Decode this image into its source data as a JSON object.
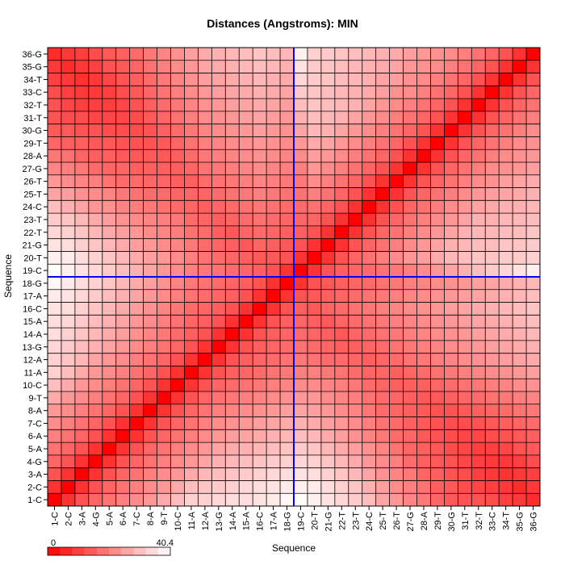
{
  "chart_data": {
    "type": "heatmap",
    "title": "Distances (Angstroms):  MIN",
    "xlabel": "Sequence",
    "ylabel": "Sequence",
    "labels": [
      "1-C",
      "2-C",
      "3-A",
      "4-G",
      "5-A",
      "6-A",
      "7-C",
      "8-A",
      "9-T",
      "10-C",
      "11-A",
      "12-A",
      "13-G",
      "14-A",
      "15-A",
      "16-C",
      "17-A",
      "18-G",
      "19-C",
      "20-T",
      "21-G",
      "22-T",
      "23-T",
      "24-C",
      "25-T",
      "26-T",
      "27-G",
      "28-A",
      "29-T",
      "30-G",
      "31-T",
      "32-T",
      "33-C",
      "34-T",
      "35-G",
      "36-G"
    ],
    "colorbar": {
      "min": 0,
      "max": 40.4,
      "min_label": "0",
      "max_label": "40.4",
      "low_color": "#ff0000",
      "high_color": "#ffffff"
    },
    "crosshair": {
      "x_index": 18,
      "y_index": 18,
      "color": "#0000ff"
    },
    "values": [
      [
        0,
        8,
        13,
        16,
        18,
        20,
        22,
        24,
        27,
        30,
        33,
        33,
        34,
        35,
        35,
        36,
        37,
        39,
        40,
        38,
        36,
        34,
        32,
        30,
        26,
        24,
        21,
        19,
        16,
        14,
        13,
        13,
        12,
        10,
        9,
        7
      ],
      [
        8,
        0,
        8,
        13,
        16,
        18,
        20,
        22,
        24,
        27,
        30,
        31,
        32,
        33,
        34,
        35,
        36,
        37,
        38,
        37,
        35,
        33,
        31,
        28,
        25,
        22,
        20,
        18,
        15,
        14,
        12,
        11,
        10,
        9,
        7,
        9
      ],
      [
        13,
        8,
        0,
        8,
        13,
        16,
        18,
        20,
        22,
        24,
        27,
        29,
        30,
        31,
        32,
        33,
        34,
        35,
        36,
        35,
        33,
        31,
        29,
        26,
        23,
        21,
        19,
        16,
        15,
        13,
        12,
        10,
        9,
        8,
        9,
        10
      ],
      [
        16,
        13,
        8,
        0,
        8,
        13,
        16,
        18,
        20,
        22,
        24,
        26,
        28,
        29,
        30,
        31,
        32,
        33,
        34,
        33,
        31,
        29,
        27,
        24,
        22,
        20,
        17,
        15,
        14,
        13,
        11,
        10,
        9,
        9,
        10,
        12
      ],
      [
        18,
        16,
        13,
        8,
        0,
        8,
        13,
        16,
        18,
        20,
        22,
        24,
        26,
        27,
        28,
        29,
        30,
        31,
        32,
        31,
        29,
        27,
        25,
        23,
        21,
        18,
        16,
        15,
        14,
        12,
        11,
        10,
        10,
        11,
        13,
        14
      ],
      [
        20,
        18,
        16,
        13,
        8,
        0,
        8,
        13,
        16,
        18,
        20,
        22,
        24,
        25,
        26,
        27,
        28,
        29,
        30,
        29,
        27,
        25,
        23,
        21,
        19,
        17,
        16,
        14,
        13,
        12,
        11,
        11,
        12,
        13,
        14,
        15
      ],
      [
        22,
        20,
        18,
        16,
        13,
        8,
        0,
        8,
        13,
        16,
        18,
        20,
        22,
        23,
        24,
        25,
        26,
        27,
        28,
        27,
        25,
        24,
        22,
        20,
        18,
        17,
        15,
        14,
        13,
        12,
        12,
        13,
        14,
        15,
        16,
        17
      ],
      [
        24,
        22,
        20,
        18,
        16,
        13,
        8,
        0,
        8,
        13,
        16,
        18,
        20,
        21,
        22,
        23,
        24,
        25,
        26,
        25,
        24,
        22,
        21,
        19,
        17,
        16,
        15,
        14,
        13,
        13,
        14,
        15,
        16,
        17,
        18,
        19
      ],
      [
        27,
        24,
        22,
        20,
        18,
        16,
        13,
        8,
        0,
        8,
        13,
        16,
        18,
        19,
        20,
        21,
        22,
        23,
        24,
        24,
        22,
        21,
        20,
        18,
        17,
        16,
        15,
        14,
        14,
        15,
        16,
        17,
        18,
        19,
        20,
        21
      ],
      [
        30,
        27,
        24,
        22,
        20,
        18,
        16,
        13,
        8,
        0,
        8,
        13,
        16,
        17,
        18,
        19,
        20,
        21,
        22,
        22,
        21,
        20,
        19,
        17,
        16,
        15,
        15,
        15,
        16,
        17,
        18,
        19,
        20,
        21,
        22,
        23
      ],
      [
        33,
        30,
        27,
        24,
        22,
        20,
        18,
        16,
        13,
        8,
        0,
        8,
        13,
        15,
        16,
        17,
        18,
        19,
        20,
        20,
        19,
        18,
        17,
        16,
        16,
        15,
        16,
        17,
        18,
        19,
        20,
        21,
        22,
        23,
        24,
        25
      ],
      [
        33,
        31,
        29,
        26,
        24,
        22,
        20,
        18,
        16,
        13,
        8,
        0,
        8,
        13,
        15,
        16,
        17,
        18,
        19,
        18,
        17,
        17,
        16,
        15,
        16,
        17,
        18,
        19,
        20,
        21,
        22,
        23,
        24,
        25,
        26,
        27
      ],
      [
        34,
        32,
        30,
        28,
        26,
        24,
        22,
        20,
        18,
        16,
        13,
        8,
        0,
        8,
        13,
        15,
        16,
        17,
        18,
        17,
        16,
        15,
        15,
        16,
        17,
        18,
        19,
        20,
        21,
        22,
        23,
        24,
        25,
        26,
        27,
        28
      ],
      [
        35,
        33,
        31,
        29,
        27,
        25,
        23,
        21,
        19,
        17,
        15,
        13,
        8,
        0,
        8,
        13,
        15,
        16,
        17,
        16,
        15,
        14,
        16,
        17,
        18,
        19,
        20,
        21,
        22,
        23,
        24,
        25,
        26,
        27,
        28,
        29
      ],
      [
        35,
        34,
        32,
        30,
        28,
        26,
        24,
        22,
        20,
        18,
        16,
        15,
        13,
        8,
        0,
        8,
        13,
        15,
        16,
        15,
        14,
        16,
        17,
        18,
        19,
        20,
        21,
        22,
        23,
        24,
        25,
        26,
        27,
        28,
        29,
        30
      ],
      [
        36,
        35,
        33,
        31,
        29,
        27,
        25,
        23,
        21,
        19,
        17,
        16,
        15,
        13,
        8,
        0,
        8,
        13,
        15,
        14,
        16,
        17,
        18,
        19,
        20,
        21,
        22,
        23,
        24,
        25,
        26,
        27,
        28,
        29,
        30,
        31
      ],
      [
        37,
        36,
        34,
        32,
        30,
        28,
        26,
        24,
        22,
        20,
        18,
        17,
        16,
        15,
        13,
        8,
        0,
        8,
        13,
        14,
        15,
        16,
        17,
        18,
        19,
        20,
        21,
        22,
        23,
        24,
        25,
        26,
        27,
        28,
        29,
        30
      ],
      [
        39,
        37,
        35,
        33,
        31,
        29,
        27,
        25,
        23,
        21,
        19,
        18,
        17,
        16,
        15,
        13,
        8,
        0,
        8,
        13,
        14,
        15,
        16,
        17,
        18,
        19,
        20,
        21,
        22,
        23,
        24,
        25,
        26,
        27,
        28,
        29
      ],
      [
        40,
        38,
        36,
        34,
        32,
        30,
        28,
        26,
        24,
        22,
        20,
        19,
        18,
        17,
        16,
        15,
        13,
        8,
        0,
        8,
        13,
        15,
        16,
        17,
        18,
        19,
        20,
        22,
        24,
        26,
        28,
        30,
        32,
        34,
        36,
        38
      ],
      [
        38,
        37,
        35,
        33,
        31,
        29,
        27,
        25,
        24,
        22,
        20,
        18,
        17,
        16,
        15,
        14,
        14,
        13,
        8,
        0,
        8,
        13,
        16,
        18,
        20,
        22,
        24,
        25,
        27,
        29,
        30,
        31,
        31,
        32,
        32,
        33
      ],
      [
        36,
        35,
        33,
        31,
        29,
        27,
        25,
        24,
        22,
        21,
        19,
        17,
        16,
        15,
        14,
        16,
        15,
        14,
        13,
        8,
        0,
        8,
        13,
        16,
        18,
        20,
        22,
        24,
        26,
        28,
        29,
        30,
        30,
        31,
        31,
        32
      ],
      [
        34,
        33,
        31,
        29,
        27,
        25,
        24,
        22,
        21,
        20,
        18,
        17,
        15,
        14,
        16,
        17,
        16,
        15,
        15,
        13,
        8,
        0,
        8,
        13,
        16,
        18,
        20,
        22,
        24,
        26,
        28,
        29,
        29,
        30,
        30,
        31
      ],
      [
        32,
        31,
        29,
        27,
        25,
        23,
        22,
        21,
        20,
        19,
        17,
        16,
        15,
        16,
        17,
        18,
        17,
        16,
        16,
        16,
        13,
        8,
        0,
        8,
        13,
        16,
        18,
        20,
        22,
        24,
        26,
        28,
        28,
        29,
        29,
        30
      ],
      [
        30,
        28,
        26,
        24,
        23,
        21,
        20,
        19,
        18,
        17,
        16,
        15,
        16,
        17,
        18,
        19,
        18,
        17,
        17,
        18,
        16,
        13,
        8,
        0,
        8,
        13,
        16,
        18,
        20,
        22,
        24,
        26,
        27,
        28,
        28,
        29
      ],
      [
        26,
        25,
        23,
        22,
        21,
        19,
        18,
        17,
        17,
        16,
        16,
        16,
        17,
        18,
        19,
        20,
        19,
        18,
        18,
        20,
        18,
        16,
        13,
        8,
        0,
        8,
        13,
        16,
        18,
        20,
        22,
        24,
        25,
        26,
        27,
        28
      ],
      [
        24,
        22,
        21,
        20,
        18,
        17,
        17,
        16,
        16,
        15,
        15,
        17,
        18,
        19,
        20,
        21,
        20,
        19,
        19,
        22,
        20,
        18,
        16,
        13,
        8,
        0,
        8,
        13,
        16,
        18,
        20,
        22,
        23,
        25,
        26,
        27
      ],
      [
        21,
        20,
        19,
        17,
        16,
        16,
        15,
        15,
        15,
        15,
        16,
        18,
        19,
        20,
        21,
        22,
        21,
        20,
        20,
        24,
        22,
        20,
        18,
        16,
        13,
        8,
        0,
        8,
        13,
        16,
        18,
        20,
        22,
        23,
        24,
        25
      ],
      [
        19,
        18,
        16,
        15,
        15,
        14,
        14,
        14,
        14,
        15,
        17,
        19,
        20,
        21,
        22,
        23,
        22,
        21,
        22,
        25,
        24,
        22,
        20,
        18,
        16,
        13,
        8,
        0,
        8,
        13,
        16,
        18,
        20,
        22,
        23,
        24
      ],
      [
        16,
        15,
        15,
        14,
        14,
        13,
        13,
        13,
        14,
        16,
        18,
        20,
        21,
        22,
        23,
        24,
        23,
        22,
        24,
        27,
        26,
        24,
        22,
        20,
        18,
        16,
        13,
        8,
        0,
        8,
        13,
        16,
        18,
        20,
        22,
        23
      ],
      [
        14,
        14,
        13,
        13,
        12,
        12,
        12,
        13,
        15,
        17,
        19,
        21,
        22,
        23,
        24,
        25,
        24,
        23,
        26,
        29,
        28,
        26,
        24,
        22,
        20,
        18,
        16,
        13,
        8,
        0,
        8,
        13,
        16,
        18,
        20,
        22
      ],
      [
        13,
        12,
        12,
        11,
        11,
        11,
        12,
        14,
        16,
        18,
        20,
        22,
        23,
        24,
        25,
        26,
        25,
        24,
        28,
        30,
        29,
        28,
        26,
        24,
        22,
        20,
        18,
        16,
        13,
        8,
        0,
        8,
        13,
        16,
        18,
        20
      ],
      [
        13,
        11,
        10,
        10,
        10,
        11,
        13,
        15,
        17,
        19,
        21,
        23,
        24,
        25,
        26,
        27,
        26,
        25,
        30,
        31,
        30,
        29,
        28,
        26,
        24,
        22,
        20,
        18,
        16,
        13,
        8,
        0,
        8,
        13,
        16,
        18
      ],
      [
        12,
        10,
        9,
        9,
        10,
        12,
        14,
        16,
        18,
        20,
        22,
        24,
        25,
        26,
        27,
        28,
        27,
        26,
        32,
        31,
        30,
        29,
        28,
        27,
        25,
        23,
        22,
        20,
        18,
        16,
        13,
        8,
        0,
        8,
        13,
        16
      ],
      [
        10,
        9,
        8,
        9,
        11,
        13,
        15,
        17,
        19,
        21,
        23,
        25,
        26,
        27,
        28,
        29,
        28,
        27,
        34,
        32,
        31,
        30,
        29,
        28,
        26,
        25,
        23,
        22,
        20,
        18,
        16,
        13,
        8,
        0,
        8,
        13
      ],
      [
        9,
        7,
        9,
        10,
        13,
        14,
        16,
        18,
        20,
        22,
        24,
        26,
        27,
        28,
        29,
        30,
        29,
        28,
        36,
        32,
        31,
        30,
        29,
        28,
        27,
        26,
        24,
        23,
        22,
        20,
        18,
        16,
        13,
        8,
        0,
        8
      ],
      [
        7,
        9,
        10,
        12,
        14,
        15,
        17,
        19,
        21,
        23,
        25,
        27,
        28,
        29,
        30,
        31,
        30,
        29,
        38,
        33,
        32,
        31,
        30,
        29,
        28,
        27,
        25,
        24,
        23,
        22,
        20,
        18,
        16,
        13,
        8,
        0
      ]
    ]
  }
}
